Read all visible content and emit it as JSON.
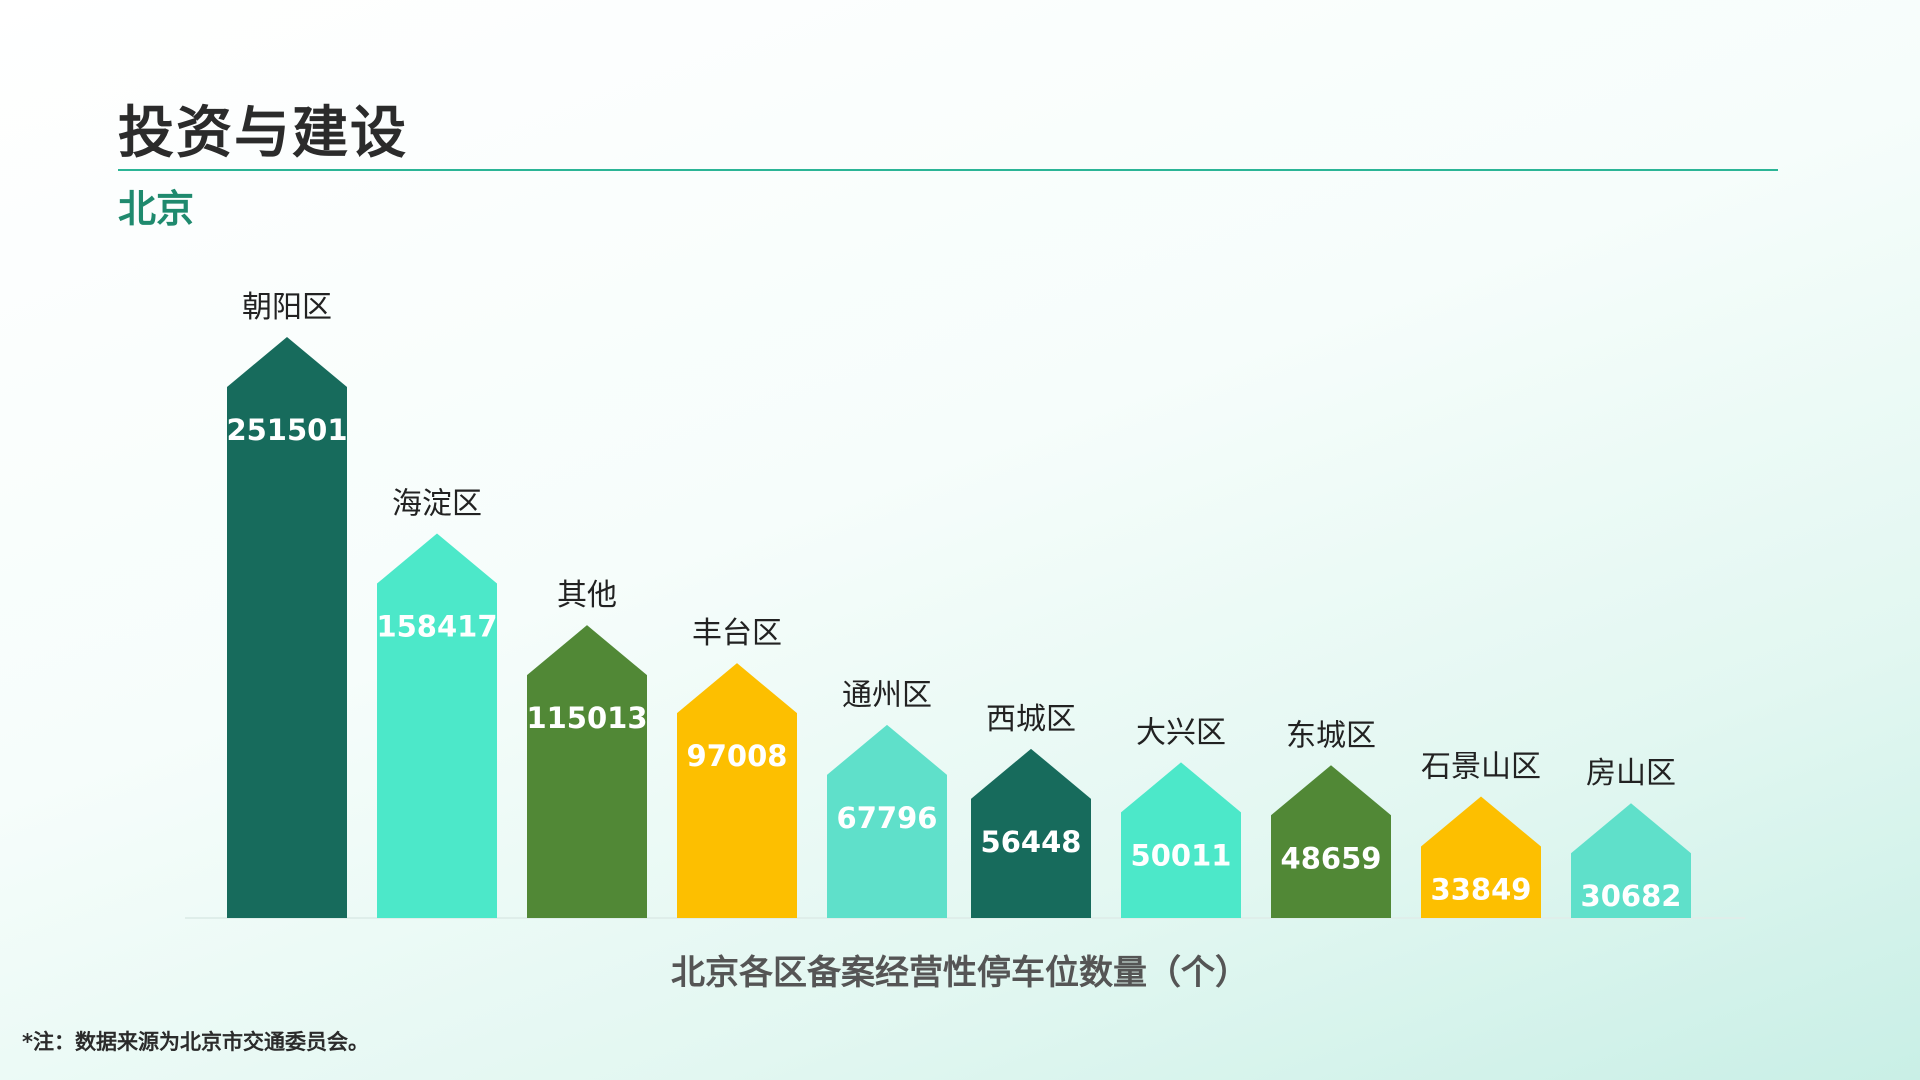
{
  "page": {
    "title": "投资与建设",
    "subtitle": "北京",
    "note": "*注：数据来源为北京市交通委员会。"
  },
  "colors": {
    "dark_green": "#176b5c",
    "aqua": "#4ce8c9",
    "olive_green": "#518836",
    "yellow": "#fdbf00",
    "light_aqua": "#5fe0ca",
    "rule": "#2bb596",
    "subtitle": "#1f8a6e"
  },
  "chart_data": {
    "type": "bar",
    "title": "北京各区备案经营性停车位数量（个）",
    "xlabel": "",
    "ylabel": "",
    "categories": [
      "朝阳区",
      "海淀区",
      "其他",
      "丰台区",
      "通州区",
      "西城区",
      "大兴区",
      "东城区",
      "石景山区",
      "房山区"
    ],
    "values": [
      251501,
      158417,
      115013,
      97008,
      67796,
      56448,
      50011,
      48659,
      33849,
      30682
    ],
    "bar_colors": [
      "#176b5c",
      "#4ce8c9",
      "#518836",
      "#fdbf00",
      "#5fe0ca",
      "#176b5c",
      "#4ce8c9",
      "#518836",
      "#fdbf00",
      "#5fe0ca"
    ],
    "grid": false,
    "legend": "none"
  }
}
